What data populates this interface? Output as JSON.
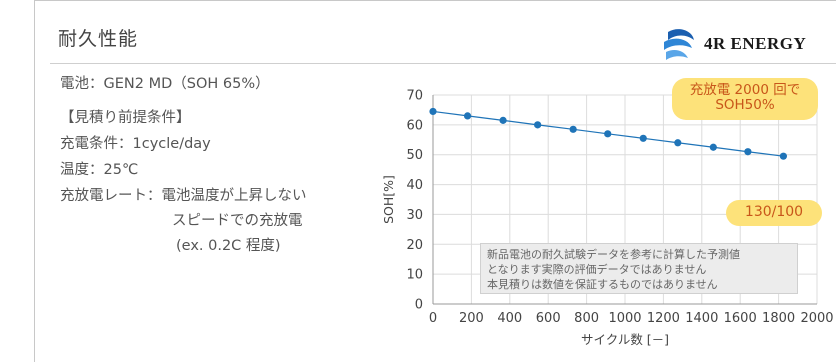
{
  "header": {
    "title": "耐久性能",
    "logo_text": "4R ENERGY"
  },
  "info": {
    "battery": "電池：GEN2 MD（SOH 65%）",
    "assumption_heading": "【見積り前提条件】",
    "charge_condition": "充電条件：1cycle/day",
    "temperature": "温度：25℃",
    "rate_label": "充放電レート：電池温度が上昇しない",
    "rate_line2": "スピードでの充放電",
    "rate_line3": "(ex. 0.2C 程度)"
  },
  "callouts": {
    "cycles_line1": "充放電 2000 回で",
    "cycles_line2": "SOH50%",
    "ratio": "130/100"
  },
  "disclaimer": {
    "line1": "新品電池の耐久試験データを参考に計算した予測値",
    "line2": "となります実際の評価データではありません",
    "line3": "本見積りは数値を保証するものではありません"
  },
  "colors": {
    "series": "#1f74b8",
    "bubble_fill": "#fde27a",
    "bubble_text": "#c8561a"
  },
  "chart_data": {
    "type": "line",
    "xlabel": "サイクル数 [－]",
    "ylabel": "SOH[%]",
    "xlim": [
      0,
      2000
    ],
    "ylim": [
      0,
      70
    ],
    "xticks": [
      0,
      200,
      400,
      600,
      800,
      1000,
      1200,
      1400,
      1600,
      1800,
      2000
    ],
    "yticks": [
      0,
      10,
      20,
      30,
      40,
      50,
      60,
      70
    ],
    "grid": true,
    "series": [
      {
        "x": [
          0,
          180,
          365,
          545,
          730,
          910,
          1095,
          1275,
          1460,
          1640,
          1825
        ],
        "y": [
          64.5,
          63.0,
          61.5,
          60.0,
          58.5,
          57.0,
          55.5,
          54.0,
          52.5,
          51.0,
          49.5
        ]
      }
    ]
  }
}
